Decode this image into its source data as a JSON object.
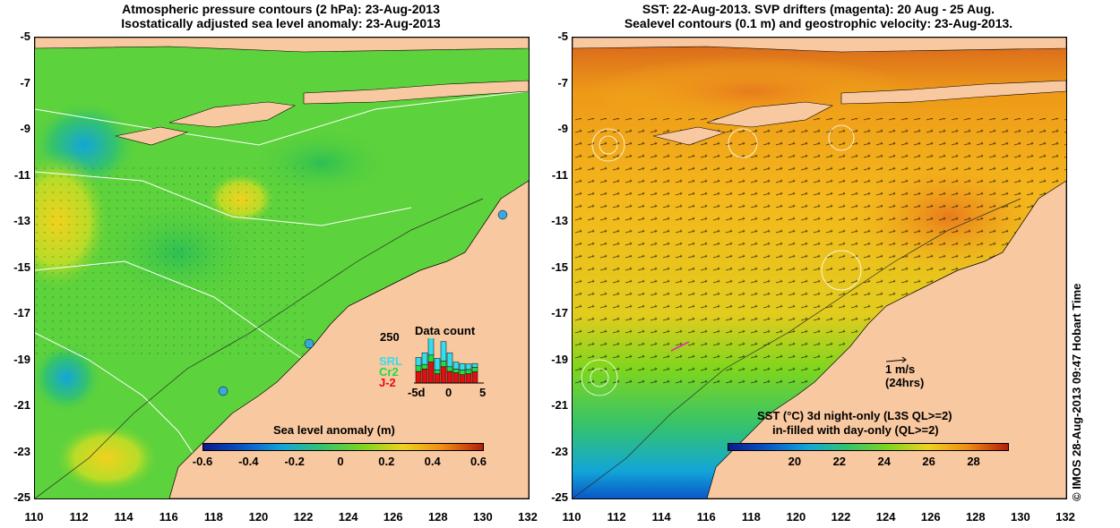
{
  "left_panel": {
    "title_line1": "Atmospheric pressure contours (2 hPa): 23-Aug-2013",
    "title_line2": "Isostatically adjusted sea level anomaly: 23-Aug-2013",
    "colorbar": {
      "label": "Sea level anomaly (m)",
      "ticks": [
        "-0.6",
        "-0.4",
        "-0.2",
        "0",
        "0.2",
        "0.4",
        "0.6"
      ],
      "colors": [
        "#0a1a8c",
        "#0a57c8",
        "#12a6d8",
        "#36c36a",
        "#7ed61e",
        "#f0d21e",
        "#ee8c14",
        "#b41e0a"
      ]
    },
    "data_count": {
      "title": "Data count",
      "y_label": "250",
      "legend": [
        {
          "name": "SRL",
          "color": "#33ddee"
        },
        {
          "name": "Cr2",
          "color": "#22dd44"
        },
        {
          "name": "J-2",
          "color": "#e01010"
        }
      ],
      "x_ticks": [
        "-5d",
        "0",
        "5"
      ],
      "bars": [
        {
          "j2": 0.25,
          "cr2": 0.12,
          "srl": 0.18
        },
        {
          "j2": 0.3,
          "cr2": 0.1,
          "srl": 0.25
        },
        {
          "j2": 0.45,
          "cr2": 0.15,
          "srl": 0.4
        },
        {
          "j2": 0.2,
          "cr2": 0.08,
          "srl": 0.25
        },
        {
          "j2": 0.35,
          "cr2": 0.12,
          "srl": 0.42
        },
        {
          "j2": 0.25,
          "cr2": 0.1,
          "srl": 0.3
        },
        {
          "j2": 0.22,
          "cr2": 0.08,
          "srl": 0.15
        },
        {
          "j2": 0.18,
          "cr2": 0.1,
          "srl": 0.14
        },
        {
          "j2": 0.2,
          "cr2": 0.09,
          "srl": 0.12
        },
        {
          "j2": 0.24,
          "cr2": 0.1,
          "srl": 0.08
        }
      ]
    }
  },
  "right_panel": {
    "title_line1": "SST: 22-Aug-2013. SVP drifters (magenta): 20 Aug - 25 Aug.",
    "title_line2": "Sealevel contours (0.1 m) and geostrophic velocity: 23-Aug-2013.",
    "scale_arrow_line1": "1 m/s",
    "scale_arrow_line2": "(24hrs)",
    "colorbar": {
      "label_line1": "SST (°C)  3d night-only (L3S QL>=2)",
      "label_line2": "in-filled with day-only (QL>=2)",
      "ticks": [
        "20",
        "22",
        "24",
        "26",
        "28"
      ],
      "colors": [
        "#0a1a8c",
        "#0a57c8",
        "#12a6d8",
        "#36c36a",
        "#7ed61e",
        "#f0d21e",
        "#ee8c14",
        "#b41e0a"
      ]
    },
    "credit": "© IMOS 28-Aug-2013 09:47 Hobart Time"
  },
  "axes": {
    "lat_ticks": [
      "-5",
      "-7",
      "-9",
      "-11",
      "-13",
      "-15",
      "-17",
      "-19",
      "-21",
      "-23",
      "-25"
    ],
    "lon_ticks": [
      "110",
      "112",
      "114",
      "116",
      "118",
      "120",
      "122",
      "124",
      "126",
      "128",
      "130",
      "132"
    ]
  },
  "colors": {
    "land": "#f8c8a0",
    "sla_background": "#5cd23c",
    "sst_background": "#f2b41c"
  }
}
